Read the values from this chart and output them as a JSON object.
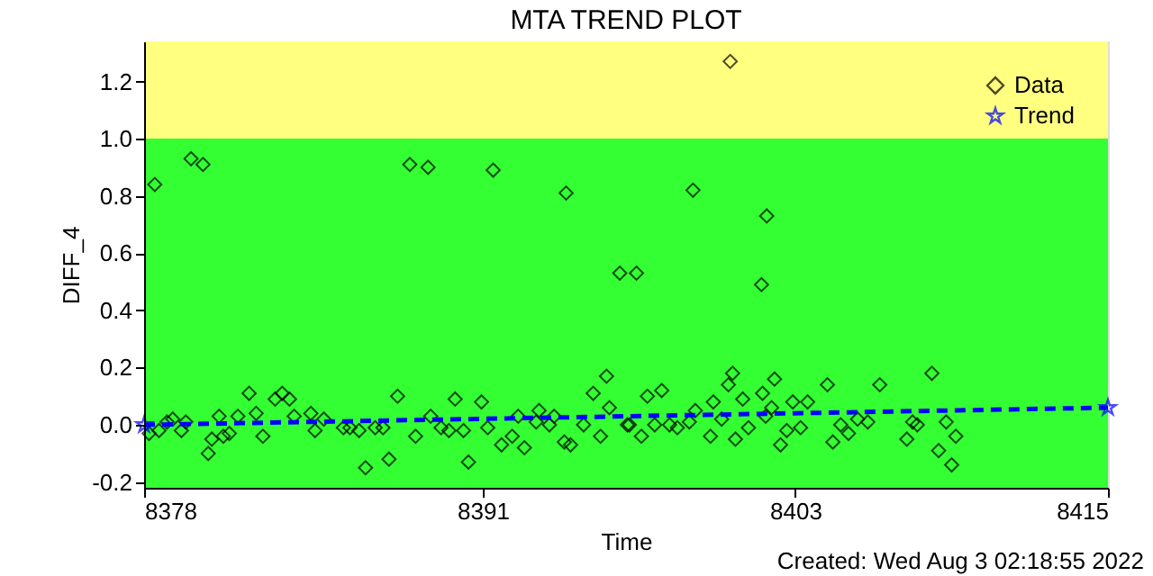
{
  "chart_data": {
    "type": "scatter",
    "title": "MTA TREND PLOT",
    "xlabel": "Time",
    "ylabel": "DIFF_4",
    "annotations": [
      "Created: Wed Aug  3 02:18:55 2022"
    ],
    "xlim": [
      8378,
      8415
    ],
    "xticks": [
      8378,
      8391,
      8403,
      8415
    ],
    "ylim": [
      -0.22,
      1.34
    ],
    "yticks": [
      {
        "value": -0.2,
        "label": "-0.2"
      },
      {
        "value": 0,
        "label": "0.0"
      },
      {
        "value": 0.2,
        "label": "0.2"
      },
      {
        "value": 0.4,
        "label": "0.4"
      },
      {
        "value": 0.6,
        "label": "0.6"
      },
      {
        "value": 0.8,
        "label": "0.8"
      },
      {
        "value": 1.0,
        "label": "1.0"
      },
      {
        "value": 1.2,
        "label": "1.2"
      }
    ],
    "legend": "top right",
    "bands": [
      {
        "axis": "y",
        "from": -0.22,
        "to": 1.0,
        "color": "#33ff33"
      },
      {
        "axis": "y",
        "from": 1.0,
        "to": 1.34,
        "color": "#ffff80"
      }
    ],
    "series": [
      {
        "name": "Data",
        "color": "#000000",
        "marker": "diamond",
        "x": [
          8378.41,
          8379.8,
          8380.26,
          8388.2,
          8388.9,
          8391.4,
          8394.2,
          8400.5,
          8399.07,
          8401.9,
          8396.26,
          8396.9,
          8401.7,
          8378.19,
          8378.57,
          8378.88,
          8379.1,
          8379.43,
          8379.6,
          8380.46,
          8380.6,
          8380.88,
          8381.04,
          8381.27,
          8381.6,
          8382.03,
          8382.3,
          8382.56,
          8383.03,
          8383.3,
          8383.58,
          8383.76,
          8384.4,
          8384.56,
          8384.9,
          8385.65,
          8385.9,
          8386.25,
          8386.5,
          8386.87,
          8387.17,
          8387.4,
          8387.73,
          8388.42,
          8389.0,
          8389.4,
          8389.7,
          8389.94,
          8390.26,
          8390.45,
          8390.95,
          8391.19,
          8391.72,
          8392.13,
          8392.6,
          8392.36,
          8393.16,
          8393.05,
          8393.74,
          8393.56,
          8394.13,
          8394.37,
          8394.87,
          8395.52,
          8395.24,
          8395.75,
          8395.86,
          8396.55,
          8396.63,
          8397.09,
          8397.32,
          8397.87,
          8397.6,
          8398.17,
          8398.47,
          8398.93,
          8399.16,
          8399.74,
          8399.85,
          8400.17,
          8400.43,
          8400.59,
          8400.7,
          8400.98,
          8401.2,
          8401.74,
          8401.86,
          8402.09,
          8402.2,
          8402.43,
          8402.67,
          8402.9,
          8403.2,
          8403.47,
          8404.23,
          8404.44,
          8404.74,
          8405.04,
          8405.39,
          8405.78,
          8406.24,
          8407.28,
          8407.5,
          8407.68,
          8408.24,
          8408.5,
          8408.79,
          8409.0,
          8409.16
        ],
        "values": [
          0.84,
          0.93,
          0.91,
          0.91,
          0.9,
          0.89,
          0.81,
          1.27,
          0.82,
          0.73,
          0.53,
          0.53,
          0.49,
          -0.03,
          -0.02,
          0.01,
          0.02,
          -0.02,
          0.01,
          -0.1,
          -0.05,
          0.03,
          -0.04,
          -0.03,
          0.03,
          0.11,
          0.04,
          -0.04,
          0.09,
          0.11,
          0.09,
          0.03,
          0.04,
          -0.02,
          0.02,
          -0.01,
          -0.01,
          -0.02,
          -0.15,
          -0.01,
          -0.01,
          -0.12,
          0.1,
          -0.04,
          0.03,
          -0.01,
          -0.02,
          0.09,
          -0.02,
          -0.13,
          0.08,
          -0.01,
          -0.07,
          -0.04,
          -0.08,
          0.03,
          0.05,
          0.01,
          0.03,
          0.0,
          -0.06,
          -0.07,
          0.0,
          -0.04,
          0.11,
          0.17,
          0.06,
          0.0,
          0.0,
          -0.04,
          0.1,
          0.12,
          0.0,
          0.0,
          -0.01,
          0.01,
          0.05,
          -0.04,
          0.08,
          0.02,
          0.14,
          0.18,
          -0.05,
          0.09,
          -0.01,
          0.11,
          0.03,
          0.06,
          0.16,
          -0.07,
          -0.02,
          0.08,
          -0.01,
          0.08,
          0.14,
          -0.06,
          0.0,
          -0.03,
          0.02,
          0.01,
          0.14,
          -0.05,
          0.01,
          0.0,
          0.18,
          -0.09,
          0.01,
          -0.14,
          -0.04
        ]
      },
      {
        "name": "Trend",
        "color": "#0000ff",
        "type": "line",
        "marker": "star",
        "line_style": "dashed",
        "x": [
          8378,
          8415
        ],
        "values": [
          0.0,
          0.06
        ]
      }
    ]
  }
}
